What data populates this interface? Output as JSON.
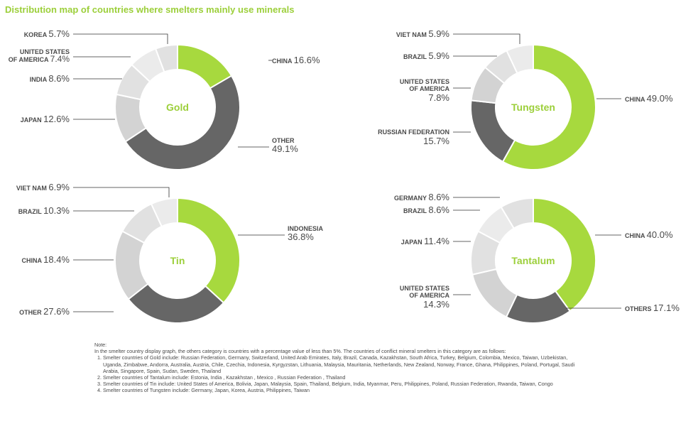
{
  "title": "Distribution map of countries where smelters mainly use minerals",
  "colors": {
    "title": "#9ccf3a",
    "highlight": "#a7d93e",
    "other": "#666666",
    "gray_1": "#d3d3d3",
    "gray_2": "#e1e1e1",
    "gray_3": "#ebebeb",
    "center_label": "#9ccf3a",
    "text": "#4a4a4a"
  },
  "chart_data": [
    {
      "type": "pie",
      "title": "Gold",
      "slices": [
        {
          "name": "CHINA",
          "value": 16.6,
          "display": "16.6%"
        },
        {
          "name": "OTHER",
          "value": 49.1,
          "display": "49.1%"
        },
        {
          "name": "JAPAN",
          "value": 12.6,
          "display": "12.6%"
        },
        {
          "name": "INDIA",
          "value": 8.6,
          "display": "8.6%"
        },
        {
          "name": "UNITED STATES OF AMERICA",
          "value": 7.4,
          "display": "7.4%"
        },
        {
          "name": "KOREA",
          "value": 5.7,
          "display": "5.7%"
        }
      ]
    },
    {
      "type": "pie",
      "title": "Tungsten",
      "slices": [
        {
          "name": "CHINA",
          "value": 49.0,
          "display": "49.0%"
        },
        {
          "name": "RUSSIAN FEDERATION",
          "value": 15.7,
          "display": "15.7%"
        },
        {
          "name": "UNITED STATES OF AMERICA",
          "value": 7.8,
          "display": "7.8%"
        },
        {
          "name": "BRAZIL",
          "value": 5.9,
          "display": "5.9%"
        },
        {
          "name": "VIET NAM",
          "value": 5.9,
          "display": "5.9%"
        }
      ]
    },
    {
      "type": "pie",
      "title": "Tin",
      "slices": [
        {
          "name": "INDONESIA",
          "value": 36.8,
          "display": "36.8%"
        },
        {
          "name": "OTHER",
          "value": 27.6,
          "display": "27.6%"
        },
        {
          "name": "CHINA",
          "value": 18.4,
          "display": "18.4%"
        },
        {
          "name": "BRAZIL",
          "value": 10.3,
          "display": "10.3%"
        },
        {
          "name": "VIET NAM",
          "value": 6.9,
          "display": "6.9%"
        }
      ]
    },
    {
      "type": "pie",
      "title": "Tantalum",
      "slices": [
        {
          "name": "CHINA",
          "value": 40.0,
          "display": "40.0%"
        },
        {
          "name": "OTHERS",
          "value": 17.1,
          "display": "17.1%"
        },
        {
          "name": "UNITED STATES OF AMERICA",
          "value": 14.3,
          "display": "14.3%"
        },
        {
          "name": "JAPAN",
          "value": 11.4,
          "display": "11.4%"
        },
        {
          "name": "BRAZIL",
          "value": 8.6,
          "display": "8.6%"
        },
        {
          "name": "GERMANY",
          "value": 8.6,
          "display": "8.6%"
        }
      ]
    }
  ],
  "notes": {
    "heading": "Note:",
    "intro": "In the smelter country display graph, the others category is countries with a percentage value of less than 5%. The countries of conflict mineral smelters in this category are as follows:",
    "items": [
      "Smelter countries of Gold include: Russian Federation, Germany, Switzerland, United Arab Emirates, Italy, Brazil, Canada, Kazakhstan, South Africa, Turkey, Belgium, Colombia, Mexico, Taiwan, Uzbekistan, Uganda, Zimbabwe, Andorra, Australia, Austria, Chile, Czechia, Indonesia, Kyrgyzstan, Lithuania, Malaysia, Mauritania, Netherlands, New Zealand, Norway, France, Ghana, Philippines, Poland, Portugal, Saudi Arabia, Singapore, Spain, Sudan, Sweden, Thailand",
      "Smelter countries of Tantalum include: Estonia, India , Kazakhstan , Mexico , Russian Federation , Thailand",
      "Smelter countries of Tin include: United States of America, Bolivia, Japan, Malaysia, Spain, Thailand, Belgium, India, Myanmar, Peru, Philippines, Poland, Russian Federation, Rwanda, Taiwan, Congo",
      "Smelter countries of Tungsten include: Germany, Japan, Korea, Austria, Philippines, Taiwan"
    ]
  }
}
